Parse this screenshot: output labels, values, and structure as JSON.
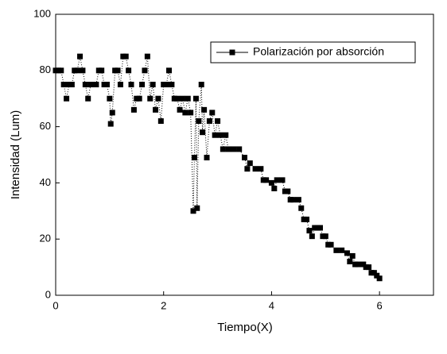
{
  "chart_data": {
    "type": "line",
    "x_label": "Tiempo(X)",
    "y_label": "Intensidad (Lum)",
    "xlim": [
      0,
      7
    ],
    "xticks": [
      0,
      2,
      4,
      6
    ],
    "ylim": [
      0,
      100
    ],
    "yticks": [
      0,
      20,
      40,
      60,
      80,
      100
    ],
    "legend": "upper right",
    "x": [
      0.0,
      0.05,
      0.1,
      0.15,
      0.2,
      0.25,
      0.3,
      0.35,
      0.4,
      0.45,
      0.5,
      0.55,
      0.6,
      0.65,
      0.7,
      0.75,
      0.8,
      0.85,
      0.9,
      0.95,
      1.0,
      1.02,
      1.05,
      1.1,
      1.15,
      1.2,
      1.25,
      1.3,
      1.35,
      1.4,
      1.45,
      1.5,
      1.55,
      1.6,
      1.65,
      1.7,
      1.75,
      1.8,
      1.85,
      1.9,
      1.95,
      2.0,
      2.05,
      2.1,
      2.15,
      2.2,
      2.25,
      2.3,
      2.35,
      2.4,
      2.45,
      2.5,
      2.55,
      2.57,
      2.6,
      2.62,
      2.65,
      2.7,
      2.72,
      2.75,
      2.8,
      2.85,
      2.9,
      2.95,
      3.0,
      3.05,
      3.1,
      3.15,
      3.2,
      3.3,
      3.4,
      3.5,
      3.55,
      3.6,
      3.7,
      3.8,
      3.85,
      3.9,
      4.0,
      4.05,
      4.1,
      4.2,
      4.25,
      4.3,
      4.35,
      4.4,
      4.5,
      4.55,
      4.6,
      4.65,
      4.7,
      4.75,
      4.8,
      4.85,
      4.9,
      4.95,
      5.0,
      5.05,
      5.1,
      5.2,
      5.3,
      5.4,
      5.45,
      5.5,
      5.55,
      5.6,
      5.7,
      5.75,
      5.8,
      5.85,
      5.9,
      5.95,
      6.0
    ],
    "series": [
      {
        "name": "Polarización por absorción",
        "color": "#000000",
        "values": [
          80,
          80,
          80,
          75,
          70,
          75,
          75,
          80,
          80,
          85,
          80,
          75,
          70,
          75,
          75,
          75,
          80,
          80,
          75,
          75,
          70,
          61,
          65,
          80,
          80,
          75,
          85,
          85,
          80,
          75,
          66,
          70,
          70,
          75,
          80,
          85,
          70,
          75,
          66,
          70,
          62,
          75,
          75,
          80,
          75,
          70,
          70,
          66,
          70,
          65,
          70,
          65,
          30,
          49,
          70,
          31,
          62,
          75,
          58,
          66,
          49,
          62,
          65,
          57,
          62,
          57,
          52,
          57,
          52,
          52,
          52,
          49,
          45,
          47,
          45,
          45,
          41,
          41,
          40,
          38,
          41,
          41,
          37,
          37,
          34,
          34,
          34,
          31,
          27,
          27,
          23,
          21,
          24,
          24,
          24,
          21,
          21,
          18,
          18,
          16,
          16,
          15,
          12,
          14,
          11,
          11,
          11,
          10,
          10,
          8,
          8,
          7,
          6
        ]
      }
    ]
  }
}
